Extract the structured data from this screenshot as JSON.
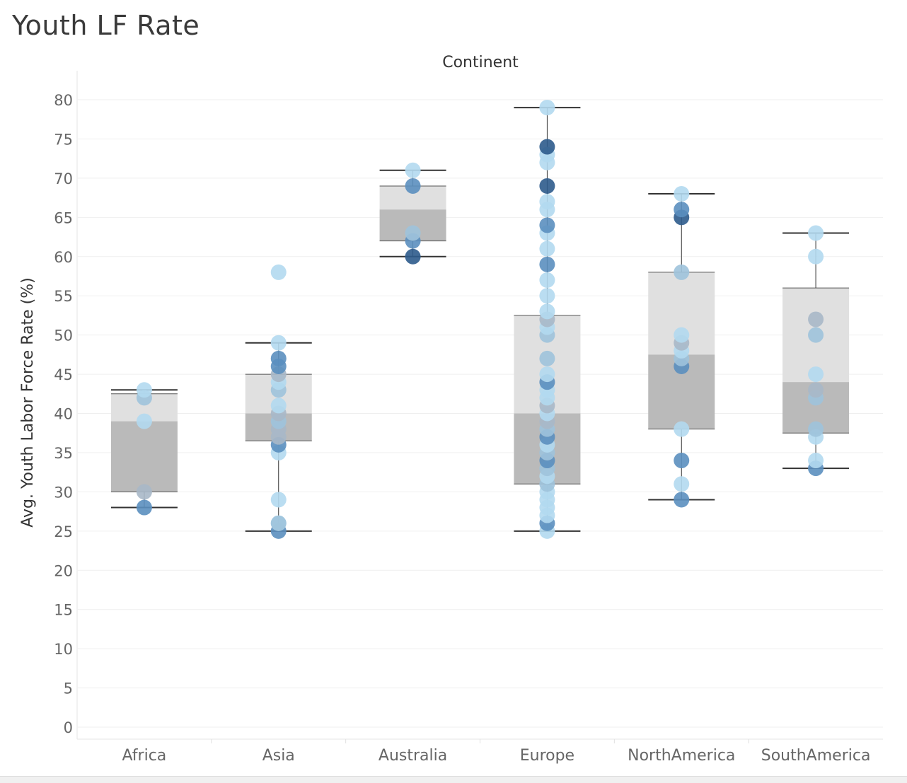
{
  "page": {
    "title": "Youth LF Rate"
  },
  "chart_data": {
    "type": "box",
    "title": "Youth LF Rate",
    "column_header": "Continent",
    "xlabel": "",
    "ylabel": "Avg. Youth Labor Force Rate (%)",
    "ylim": [
      0,
      80
    ],
    "yticks": [
      0,
      5,
      10,
      15,
      20,
      25,
      30,
      35,
      40,
      45,
      50,
      55,
      60,
      65,
      70,
      75,
      80
    ],
    "grid": true,
    "categories": [
      "Africa",
      "Asia",
      "Australia",
      "Europe",
      "NorthAmerica",
      "SouthAmerica"
    ],
    "box_colors": {
      "upper": "#e0e0e0",
      "lower": "#bababa",
      "whisker": "#333333"
    },
    "point_colors": [
      "#b3d9ef",
      "#9fc3db",
      "#5b8fbf",
      "#2e5b8c",
      "#a8b8c8"
    ],
    "boxes": [
      {
        "category": "Africa",
        "min": 28,
        "q1": 30,
        "median": 39,
        "q3": 42.5,
        "max": 43,
        "points": [
          [
            28,
            2
          ],
          [
            30,
            4
          ],
          [
            39,
            0
          ],
          [
            42,
            1
          ],
          [
            43,
            0
          ]
        ]
      },
      {
        "category": "Asia",
        "min": 25,
        "q1": 36.5,
        "median": 40,
        "q3": 45,
        "max": 49,
        "points": [
          [
            25,
            2
          ],
          [
            26,
            0
          ],
          [
            26,
            1
          ],
          [
            29,
            0
          ],
          [
            35,
            0
          ],
          [
            36,
            2
          ],
          [
            37,
            4
          ],
          [
            38,
            4
          ],
          [
            39,
            1
          ],
          [
            40,
            4
          ],
          [
            41,
            0
          ],
          [
            43,
            1
          ],
          [
            44,
            0
          ],
          [
            45,
            4
          ],
          [
            46,
            2
          ],
          [
            47,
            2
          ],
          [
            49,
            0
          ],
          [
            58,
            0
          ]
        ]
      },
      {
        "category": "Australia",
        "min": 60,
        "q1": 62,
        "median": 66,
        "q3": 69,
        "max": 71,
        "points": [
          [
            60,
            3
          ],
          [
            62,
            2
          ],
          [
            63,
            1
          ],
          [
            69,
            2
          ],
          [
            71,
            0
          ]
        ]
      },
      {
        "category": "Europe",
        "min": 25,
        "q1": 31,
        "median": 40,
        "q3": 52.5,
        "max": 79,
        "points": [
          [
            25,
            0
          ],
          [
            26,
            2
          ],
          [
            27,
            0
          ],
          [
            28,
            0
          ],
          [
            29,
            0
          ],
          [
            30,
            0
          ],
          [
            31,
            1
          ],
          [
            32,
            0
          ],
          [
            33,
            1
          ],
          [
            34,
            2
          ],
          [
            35,
            1
          ],
          [
            36,
            0
          ],
          [
            37,
            2
          ],
          [
            38,
            1
          ],
          [
            39,
            4
          ],
          [
            40,
            0
          ],
          [
            41,
            4
          ],
          [
            42,
            0
          ],
          [
            43,
            0
          ],
          [
            44,
            2
          ],
          [
            45,
            0
          ],
          [
            47,
            1
          ],
          [
            50,
            1
          ],
          [
            51,
            0
          ],
          [
            52,
            4
          ],
          [
            53,
            0
          ],
          [
            55,
            0
          ],
          [
            57,
            0
          ],
          [
            59,
            2
          ],
          [
            61,
            0
          ],
          [
            63,
            0
          ],
          [
            64,
            2
          ],
          [
            66,
            0
          ],
          [
            67,
            0
          ],
          [
            69,
            3
          ],
          [
            72,
            0
          ],
          [
            73,
            0
          ],
          [
            74,
            3
          ],
          [
            79,
            0
          ]
        ]
      },
      {
        "category": "NorthAmerica",
        "min": 29,
        "q1": 38,
        "median": 47.5,
        "q3": 58,
        "max": 68,
        "points": [
          [
            29,
            2
          ],
          [
            31,
            0
          ],
          [
            34,
            2
          ],
          [
            38,
            0
          ],
          [
            46,
            2
          ],
          [
            47,
            1
          ],
          [
            48,
            0
          ],
          [
            49,
            4
          ],
          [
            50,
            0
          ],
          [
            58,
            1
          ],
          [
            65,
            3
          ],
          [
            66,
            2
          ],
          [
            68,
            0
          ]
        ]
      },
      {
        "category": "SouthAmerica",
        "min": 33,
        "q1": 37.5,
        "median": 44,
        "q3": 56,
        "max": 63,
        "points": [
          [
            33,
            2
          ],
          [
            34,
            0
          ],
          [
            37,
            0
          ],
          [
            38,
            1
          ],
          [
            42,
            1
          ],
          [
            43,
            4
          ],
          [
            45,
            0
          ],
          [
            50,
            1
          ],
          [
            52,
            4
          ],
          [
            60,
            0
          ],
          [
            63,
            0
          ]
        ]
      }
    ]
  }
}
